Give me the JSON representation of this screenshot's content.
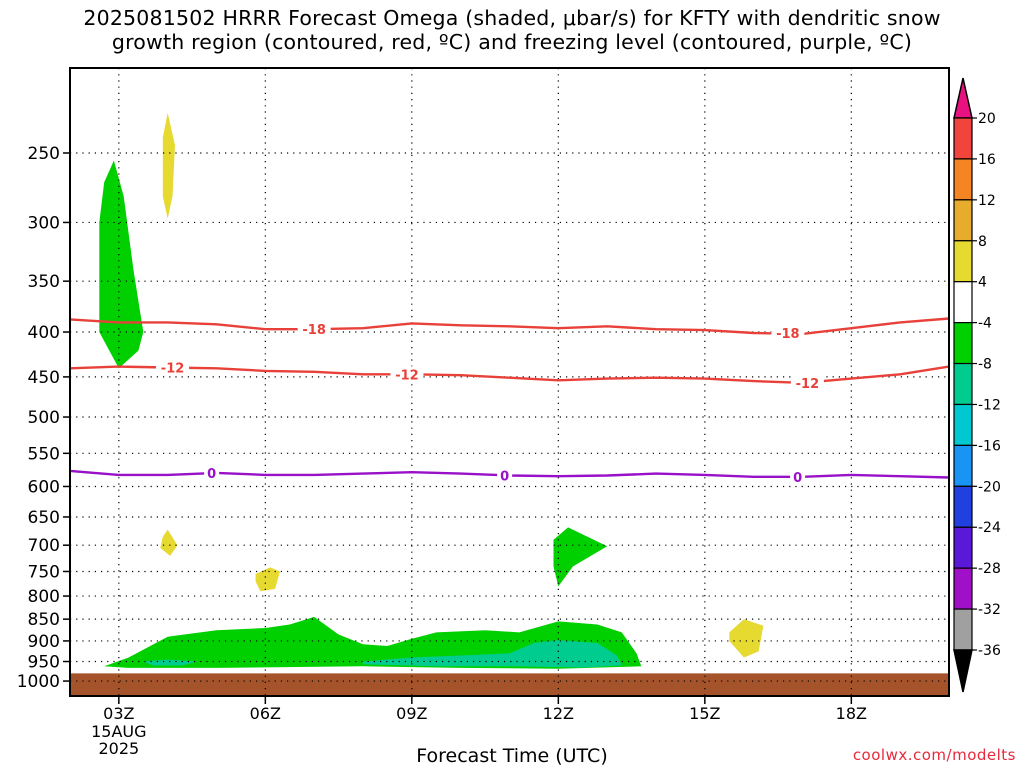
{
  "title_line1": "2025081502 HRRR Forecast Omega (shaded, μbar/s) for KFTY with dendritic snow",
  "title_line2": "growth region (contoured, red, ºC) and freezing level (contoured, purple, ºC)",
  "credit": "coolwx.com/modelts",
  "chart_data": {
    "type": "contour",
    "xlabel": "Forecast Time (UTC)",
    "x_ticks": [
      {
        "label": "03Z",
        "hour": 3
      },
      {
        "label": "06Z",
        "hour": 6
      },
      {
        "label": "09Z",
        "hour": 9
      },
      {
        "label": "12Z",
        "hour": 12
      },
      {
        "label": "15Z",
        "hour": 15
      },
      {
        "label": "18Z",
        "hour": 18
      }
    ],
    "first_tick_date": [
      "15AUG",
      "2025"
    ],
    "xlim": [
      2,
      20
    ],
    "y_axis": {
      "label": "",
      "log_scale": true,
      "ylim": [
        1040,
        200
      ],
      "ticks": [
        250,
        300,
        350,
        400,
        450,
        500,
        550,
        600,
        650,
        700,
        750,
        800,
        850,
        900,
        950,
        1000
      ]
    },
    "grid": true,
    "red_contours": [
      {
        "value": -18,
        "label": "-18",
        "color": "#e8413a",
        "points": [
          [
            2,
            387
          ],
          [
            3,
            390
          ],
          [
            4,
            390
          ],
          [
            5,
            392
          ],
          [
            6,
            397
          ],
          [
            7,
            397
          ],
          [
            8,
            396
          ],
          [
            9,
            391
          ],
          [
            10,
            393
          ],
          [
            11,
            394
          ],
          [
            12,
            396
          ],
          [
            13,
            394
          ],
          [
            14,
            397
          ],
          [
            15,
            398
          ],
          [
            16,
            401
          ],
          [
            17,
            402
          ],
          [
            18,
            396
          ],
          [
            19,
            390
          ],
          [
            20,
            386
          ]
        ],
        "label_at": [
          [
            7,
            397
          ],
          [
            16.7,
            401
          ]
        ]
      },
      {
        "value": -12,
        "label": "-12",
        "color": "#e8413a",
        "points": [
          [
            2,
            440
          ],
          [
            3,
            438
          ],
          [
            4,
            439
          ],
          [
            5,
            440
          ],
          [
            6,
            443
          ],
          [
            7,
            444
          ],
          [
            8,
            447
          ],
          [
            9,
            447
          ],
          [
            10,
            448
          ],
          [
            11,
            451
          ],
          [
            12,
            454
          ],
          [
            13,
            452
          ],
          [
            14,
            451
          ],
          [
            15,
            452
          ],
          [
            16,
            455
          ],
          [
            17,
            457
          ],
          [
            18,
            452
          ],
          [
            19,
            447
          ],
          [
            20,
            438
          ]
        ],
        "label_at": [
          [
            4.1,
            439
          ],
          [
            8.9,
            447
          ],
          [
            17.1,
            457
          ]
        ]
      }
    ],
    "purple_contours": [
      {
        "value": 0,
        "label": "0",
        "color": "#9810c8",
        "points": [
          [
            2,
            576
          ],
          [
            3,
            582
          ],
          [
            4,
            582
          ],
          [
            5,
            579
          ],
          [
            6,
            582
          ],
          [
            7,
            582
          ],
          [
            8,
            580
          ],
          [
            9,
            578
          ],
          [
            10,
            580
          ],
          [
            11,
            583
          ],
          [
            12,
            584
          ],
          [
            13,
            583
          ],
          [
            14,
            580
          ],
          [
            15,
            582
          ],
          [
            16,
            585
          ],
          [
            17,
            585
          ],
          [
            18,
            582
          ],
          [
            19,
            584
          ],
          [
            20,
            586
          ]
        ],
        "label_at": [
          [
            4.9,
            579
          ],
          [
            10.9,
            583
          ],
          [
            16.9,
            585
          ]
        ]
      }
    ],
    "shaded_regions": [
      {
        "category": "-8 to -4",
        "color": "#00d000",
        "points": [
          [
            2.6,
            300
          ],
          [
            2.7,
            270
          ],
          [
            2.9,
            255
          ],
          [
            3.1,
            280
          ],
          [
            3.3,
            340
          ],
          [
            3.5,
            400
          ],
          [
            3.4,
            420
          ],
          [
            3.0,
            440
          ],
          [
            2.6,
            400
          ],
          [
            2.6,
            340
          ]
        ]
      },
      {
        "category": "4 to 8",
        "color": "#e6d930",
        "points": [
          [
            3.9,
            240
          ],
          [
            4.0,
            225
          ],
          [
            4.15,
            245
          ],
          [
            4.1,
            280
          ],
          [
            4.0,
            297
          ],
          [
            3.9,
            280
          ]
        ]
      },
      {
        "category": "4 to 8",
        "color": "#e6d930",
        "points": [
          [
            3.9,
            685
          ],
          [
            4.0,
            672
          ],
          [
            4.2,
            700
          ],
          [
            4.05,
            720
          ],
          [
            3.85,
            705
          ]
        ]
      },
      {
        "category": "4 to 8",
        "color": "#e6d930",
        "points": [
          [
            5.8,
            755
          ],
          [
            6.1,
            742
          ],
          [
            6.3,
            750
          ],
          [
            6.2,
            785
          ],
          [
            5.9,
            790
          ],
          [
            5.8,
            770
          ]
        ]
      },
      {
        "category": "-8 to -4",
        "color": "#00d000",
        "points": [
          [
            11.9,
            690
          ],
          [
            12.2,
            668
          ],
          [
            13.0,
            702
          ],
          [
            12.3,
            740
          ],
          [
            12.0,
            780
          ],
          [
            11.9,
            740
          ]
        ]
      },
      {
        "category": "4 to 8",
        "color": "#e6d930",
        "points": [
          [
            15.5,
            880
          ],
          [
            15.8,
            850
          ],
          [
            16.2,
            865
          ],
          [
            16.1,
            925
          ],
          [
            15.8,
            940
          ],
          [
            15.5,
            900
          ]
        ]
      },
      {
        "category": "-8 to -4",
        "color": "#00d000",
        "points": [
          [
            2.7,
            962
          ],
          [
            3.2,
            940
          ],
          [
            4.0,
            890
          ],
          [
            5.0,
            875
          ],
          [
            6.0,
            870
          ],
          [
            6.5,
            862
          ],
          [
            7.0,
            845
          ],
          [
            7.5,
            885
          ],
          [
            8.0,
            908
          ],
          [
            8.5,
            912
          ],
          [
            9.0,
            895
          ],
          [
            9.5,
            880
          ],
          [
            10.5,
            875
          ],
          [
            11.2,
            880
          ],
          [
            12.0,
            855
          ],
          [
            12.8,
            862
          ],
          [
            13.3,
            880
          ],
          [
            13.6,
            930
          ],
          [
            13.7,
            962
          ],
          [
            12.0,
            968
          ],
          [
            10.0,
            966
          ],
          [
            8.0,
            962
          ],
          [
            5.0,
            966
          ],
          [
            3.2,
            966
          ]
        ]
      },
      {
        "category": "-12 to -8",
        "color": "#00cc90",
        "points": [
          [
            3.5,
            950
          ],
          [
            4.0,
            945
          ],
          [
            4.6,
            950
          ],
          [
            4.3,
            960
          ],
          [
            3.7,
            960
          ]
        ]
      },
      {
        "category": "-12 to -8",
        "color": "#00cc90",
        "points": [
          [
            8.0,
            950
          ],
          [
            9.0,
            940
          ],
          [
            10.0,
            935
          ],
          [
            11.0,
            930
          ],
          [
            11.5,
            905
          ],
          [
            12.0,
            898
          ],
          [
            12.8,
            905
          ],
          [
            13.2,
            935
          ],
          [
            13.3,
            960
          ],
          [
            12.5,
            965
          ],
          [
            11.0,
            962
          ],
          [
            9.5,
            962
          ],
          [
            8.0,
            957
          ]
        ]
      }
    ],
    "ground": {
      "color": "#a5532a",
      "from_pressure": 980
    },
    "colorbar": {
      "tick_labels": [
        "20",
        "16",
        "12",
        "8",
        "4",
        "-4",
        "-8",
        "-12",
        "-16",
        "-20",
        "-24",
        "-28",
        "-32",
        "-36"
      ],
      "bins": [
        {
          "color": "#e8117f"
        },
        {
          "color": "#f0443c"
        },
        {
          "color": "#f58522"
        },
        {
          "color": "#e8ac2d"
        },
        {
          "color": "#e6d930"
        },
        {
          "color": "#ffffff"
        },
        {
          "color": "#00d000"
        },
        {
          "color": "#00cc90"
        },
        {
          "color": "#00c8d0"
        },
        {
          "color": "#1894f4"
        },
        {
          "color": "#2040e0"
        },
        {
          "color": "#5a18d8"
        },
        {
          "color": "#a010c8"
        },
        {
          "color": "#a0a0a0"
        },
        {
          "color": "#000000"
        }
      ]
    }
  }
}
